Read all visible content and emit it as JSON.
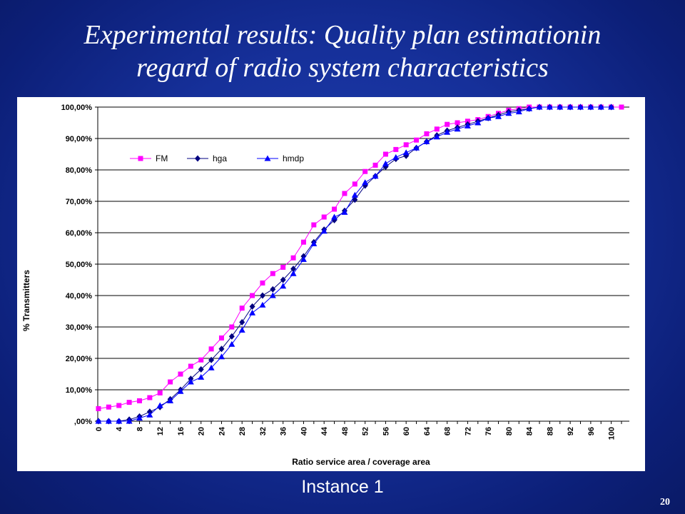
{
  "slide": {
    "title_line1": "Experimental results: Quality plan estimationin",
    "title_line2": "regard of radio system characteristics",
    "caption": "Instance 1",
    "page_number": "20",
    "background_color": "#1a35a3"
  },
  "chart_data": {
    "type": "line",
    "xlabel": "Ratio service area / coverage area",
    "ylabel": "% Transmitters",
    "x": [
      0,
      2,
      4,
      6,
      8,
      10,
      12,
      14,
      16,
      18,
      20,
      22,
      24,
      26,
      28,
      30,
      32,
      34,
      36,
      38,
      40,
      42,
      44,
      46,
      48,
      50,
      52,
      54,
      56,
      58,
      60,
      62,
      64,
      66,
      68,
      70,
      72,
      74,
      76,
      78,
      80,
      82,
      84,
      86,
      88,
      90,
      92,
      94,
      96,
      98,
      100,
      102
    ],
    "x_ticks": [
      "0",
      "4",
      "8",
      "12",
      "16",
      "20",
      "24",
      "28",
      "32",
      "36",
      "40",
      "44",
      "48",
      "52",
      "56",
      "60",
      "64",
      "68",
      "72",
      "76",
      "80",
      "84",
      "88",
      "92",
      "96",
      "100"
    ],
    "y_ticks": [
      ",00%",
      "10,00%",
      "20,00%",
      "30,00%",
      "40,00%",
      "50,00%",
      "60,00%",
      "70,00%",
      "80,00%",
      "90,00%",
      "100,00%"
    ],
    "ylim": [
      0,
      100
    ],
    "xlim": [
      0,
      102
    ],
    "grid": "horizontal",
    "legend_position": "top-left",
    "series": [
      {
        "name": "FM",
        "color": "#ff00ff",
        "marker": "square",
        "values": [
          4,
          4.5,
          5,
          6,
          6.5,
          7.5,
          9,
          12.5,
          15,
          17.5,
          19.5,
          23,
          26.5,
          30,
          36,
          40,
          44,
          47,
          49,
          52,
          57,
          62.5,
          65,
          67.5,
          72.5,
          75.5,
          79.5,
          81.5,
          85,
          86.5,
          88,
          89.5,
          91.5,
          93,
          94.5,
          95,
          95.5,
          96,
          97,
          98,
          99,
          99.5,
          100,
          100,
          100,
          100,
          100,
          100,
          100,
          100,
          100,
          100
        ]
      },
      {
        "name": "hga",
        "color": "#000080",
        "marker": "diamond",
        "values": [
          0,
          0,
          0,
          0.5,
          1.5,
          3,
          4.5,
          7,
          10,
          13.5,
          16.5,
          19.5,
          23,
          27,
          31.5,
          36.5,
          40,
          42,
          45,
          48.5,
          52.5,
          57,
          61,
          64,
          67,
          70.5,
          75,
          78,
          81,
          83.5,
          84.5,
          87,
          89,
          91,
          92.5,
          93.5,
          94.5,
          95.5,
          96.5,
          97.5,
          98.5,
          99,
          99.5,
          100,
          100,
          100,
          100,
          100,
          100,
          100,
          100,
          null
        ]
      },
      {
        "name": "hmdp",
        "color": "#0000ff",
        "marker": "triangle",
        "values": [
          0,
          0,
          0,
          0,
          1,
          2,
          5,
          6.5,
          9.5,
          12.5,
          14,
          17,
          20.5,
          24.5,
          29,
          34.5,
          37,
          40,
          43,
          47,
          51.5,
          56.5,
          60.5,
          65,
          66.5,
          72,
          76,
          78,
          82,
          84,
          85.5,
          87,
          89,
          90.5,
          92,
          93,
          94,
          95,
          96.5,
          97,
          98,
          98.5,
          99.5,
          100,
          100,
          100,
          100,
          100,
          100,
          100,
          100,
          null
        ]
      }
    ]
  }
}
